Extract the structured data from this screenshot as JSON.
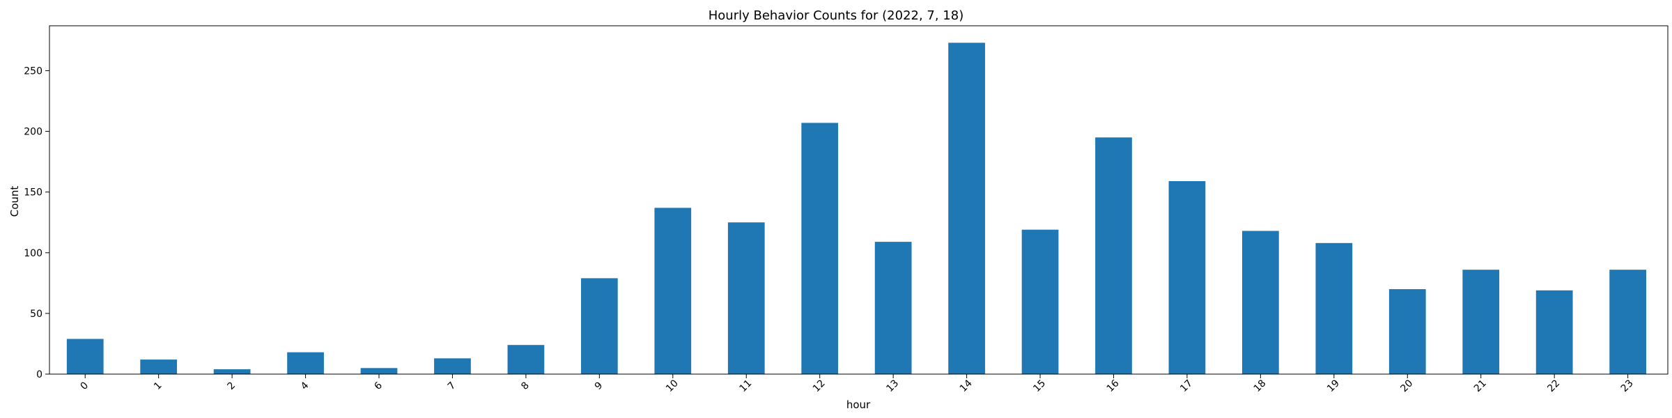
{
  "chart_data": {
    "type": "bar",
    "title": "Hourly Behavior Counts for (2022, 7, 18)",
    "xlabel": "hour",
    "ylabel": "Count",
    "categories": [
      "0",
      "1",
      "2",
      "4",
      "6",
      "7",
      "8",
      "9",
      "10",
      "11",
      "12",
      "13",
      "14",
      "15",
      "16",
      "17",
      "18",
      "19",
      "20",
      "21",
      "22",
      "23"
    ],
    "values": [
      29,
      12,
      4,
      18,
      5,
      13,
      24,
      79,
      137,
      125,
      207,
      109,
      273,
      119,
      195,
      159,
      118,
      108,
      70,
      86,
      69,
      86
    ],
    "ylim": [
      0,
      287
    ],
    "yticks": [
      0,
      50,
      100,
      150,
      200,
      250
    ],
    "grid": false,
    "legend": "none",
    "bar_color": "#1f77b4"
  }
}
